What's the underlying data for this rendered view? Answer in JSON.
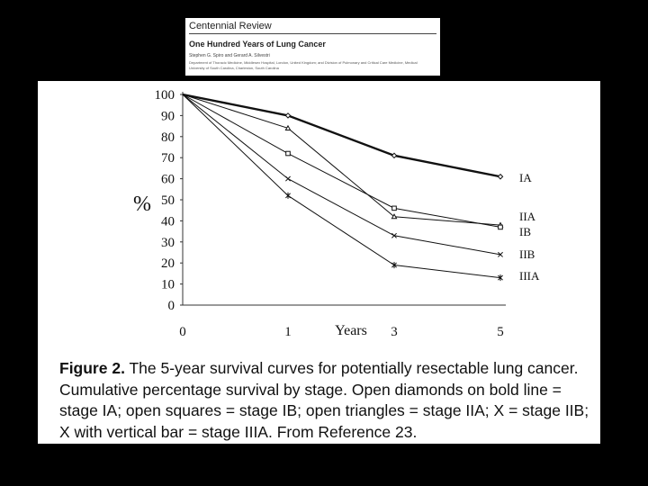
{
  "header": {
    "journal": "Centennial Review",
    "title": "One Hundred Years of Lung Cancer",
    "authors": "Stephen G. Spiro and Gerard A. Silvestri",
    "affiliation": "Department of Thoracic Medicine, Middlesex Hospital, London, United Kingdom; and Division of Pulmonary and Critical Care Medicine, Medical University of South Carolina, Charleston, South Carolina"
  },
  "chart_data": {
    "type": "line",
    "title": "",
    "xlabel": "Years",
    "ylabel": "%",
    "categories": [
      "0",
      "1",
      "3",
      "5"
    ],
    "y_ticks": [
      "100",
      "90",
      "80",
      "70",
      "60",
      "50",
      "40",
      "30",
      "20",
      "10",
      "0"
    ],
    "ylim": [
      0,
      100
    ],
    "series": [
      {
        "name": "IA",
        "marker": "diamond",
        "bold": true,
        "values": [
          100,
          90,
          71,
          61
        ]
      },
      {
        "name": "IIA",
        "marker": "triangle",
        "bold": false,
        "values": [
          100,
          84,
          42,
          38
        ]
      },
      {
        "name": "IB",
        "marker": "square",
        "bold": false,
        "values": [
          100,
          72,
          46,
          37
        ]
      },
      {
        "name": "IIB",
        "marker": "x",
        "bold": false,
        "values": [
          100,
          60,
          33,
          24
        ]
      },
      {
        "name": "IIIA",
        "marker": "x-bar",
        "bold": false,
        "values": [
          100,
          52,
          19,
          13
        ]
      }
    ]
  },
  "caption": {
    "label": "Figure 2.",
    "text": "The 5-year survival curves for potentially resectable lung cancer. Cumulative percentage survival by stage. Open diamonds on bold line = stage IA; open squares = stage IB; open triangles = stage IIA; X = stage IIB; X with vertical bar = stage IIIA. From Reference 23."
  }
}
